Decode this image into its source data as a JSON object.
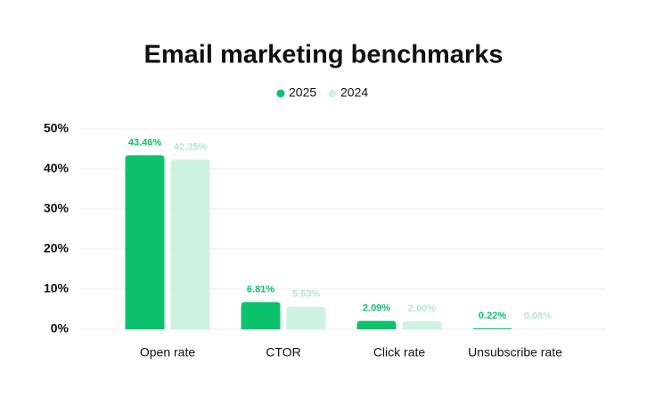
{
  "chart_data": {
    "type": "bar",
    "title": "Email marketing benchmarks",
    "categories": [
      "Open rate",
      "CTOR",
      "Click rate",
      "Unsubscribe rate"
    ],
    "series": [
      {
        "name": "2025",
        "color": "#0dc26a",
        "values": [
          43.46,
          6.81,
          2.09,
          0.22
        ],
        "value_labels": [
          "43.46%",
          "6.81%",
          "2.09%",
          "0.22%"
        ]
      },
      {
        "name": "2024",
        "color": "#cdf3e0",
        "values": [
          42.35,
          5.63,
          2.0,
          0.08
        ],
        "value_labels": [
          "42.35%",
          "5.63%",
          "2.00%",
          "0.08%"
        ]
      }
    ],
    "ylim": [
      0,
      50
    ],
    "yticks": [
      {
        "value": 0,
        "label": "0%"
      },
      {
        "value": 10,
        "label": "10%"
      },
      {
        "value": 20,
        "label": "20%"
      },
      {
        "value": 30,
        "label": "30%"
      },
      {
        "value": 40,
        "label": "40%"
      },
      {
        "value": 50,
        "label": "50%"
      }
    ],
    "grid": true,
    "legend": "top"
  }
}
